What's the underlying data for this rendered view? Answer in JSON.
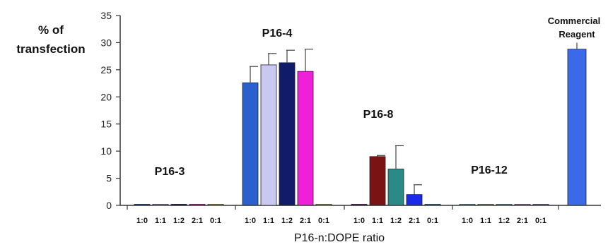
{
  "chart_data": {
    "type": "bar",
    "ylabel_line1": "% of",
    "ylabel_line2": "transfection",
    "xlabel": "P16-n:DOPE ratio",
    "ylim": [
      0,
      35
    ],
    "yticks": [
      "0",
      "5",
      "10",
      "15",
      "20",
      "25",
      "30",
      "35"
    ],
    "grid": false,
    "groups": [
      {
        "label": "P16-3",
        "categories": [
          "1:0",
          "1:1",
          "1:2",
          "2:1",
          "0:1"
        ],
        "values": [
          0.2,
          0.2,
          0.2,
          0.2,
          0.2
        ],
        "errors": [
          0,
          0,
          0,
          0,
          0
        ],
        "colors": [
          "#2a5fd0",
          "#c8c8f0",
          "#101c6a",
          "#f020d8",
          "#dfe07a"
        ]
      },
      {
        "label": "P16-4",
        "categories": [
          "1:0",
          "1:1",
          "1:2",
          "2:1",
          "0:1"
        ],
        "values": [
          22.6,
          25.9,
          26.3,
          24.7,
          0.2
        ],
        "errors": [
          3.0,
          2.1,
          2.3,
          4.1,
          0
        ],
        "colors": [
          "#2a5fd0",
          "#c8c8f0",
          "#101c6a",
          "#f020d8",
          "#dfe07a"
        ]
      },
      {
        "label": "P16-8",
        "categories": [
          "1:0",
          "1:1",
          "1:2",
          "2:1",
          "0:1"
        ],
        "values": [
          0.2,
          9.0,
          6.7,
          2.0,
          0.2
        ],
        "errors": [
          0,
          0.2,
          4.3,
          1.8,
          0
        ],
        "colors": [
          "#6a1a6a",
          "#7a1414",
          "#2a8a88",
          "#1a2ae8",
          "#40a0c8"
        ]
      },
      {
        "label": "P16-12",
        "categories": [
          "1:0",
          "1:1",
          "1:2",
          "2:1",
          "0:1"
        ],
        "values": [
          0.2,
          0.2,
          0.2,
          0.2,
          0.2
        ],
        "errors": [
          0,
          0,
          0,
          0,
          0
        ],
        "colors": [
          "#8ed8d8",
          "#b8d890",
          "#8ed8d8",
          "#d8a8d8",
          "#9aa0d8"
        ]
      }
    ],
    "reference": {
      "label_line1": "Commercial",
      "label_line2": "Reagent",
      "value": 28.8,
      "error": 1.2,
      "color": "#3a6ae8"
    }
  }
}
